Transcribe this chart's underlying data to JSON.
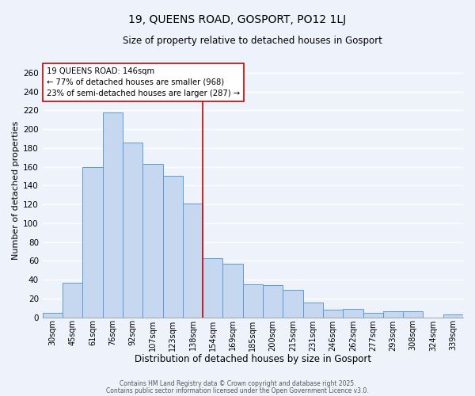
{
  "title": "19, QUEENS ROAD, GOSPORT, PO12 1LJ",
  "subtitle": "Size of property relative to detached houses in Gosport",
  "xlabel": "Distribution of detached houses by size in Gosport",
  "ylabel": "Number of detached properties",
  "categories": [
    "30sqm",
    "45sqm",
    "61sqm",
    "76sqm",
    "92sqm",
    "107sqm",
    "123sqm",
    "138sqm",
    "154sqm",
    "169sqm",
    "185sqm",
    "200sqm",
    "215sqm",
    "231sqm",
    "246sqm",
    "262sqm",
    "277sqm",
    "293sqm",
    "308sqm",
    "324sqm",
    "339sqm"
  ],
  "values": [
    5,
    37,
    160,
    218,
    186,
    163,
    150,
    121,
    63,
    57,
    35,
    34,
    29,
    16,
    8,
    9,
    5,
    6,
    6,
    0,
    3
  ],
  "bar_color": "#c5d8f0",
  "bar_edge_color": "#5b9bd5",
  "background_color": "#eef2fa",
  "grid_color": "#ffffff",
  "annotation_line_label": "19 QUEENS ROAD: 146sqm",
  "annotation_text1": "← 77% of detached houses are smaller (968)",
  "annotation_text2": "23% of semi-detached houses are larger (287) →",
  "vline_color": "#cc0000",
  "ylim": [
    0,
    270
  ],
  "yticks": [
    0,
    20,
    40,
    60,
    80,
    100,
    120,
    140,
    160,
    180,
    200,
    220,
    240,
    260
  ],
  "footer1": "Contains HM Land Registry data © Crown copyright and database right 2025.",
  "footer2": "Contains public sector information licensed under the Open Government Licence v3.0."
}
